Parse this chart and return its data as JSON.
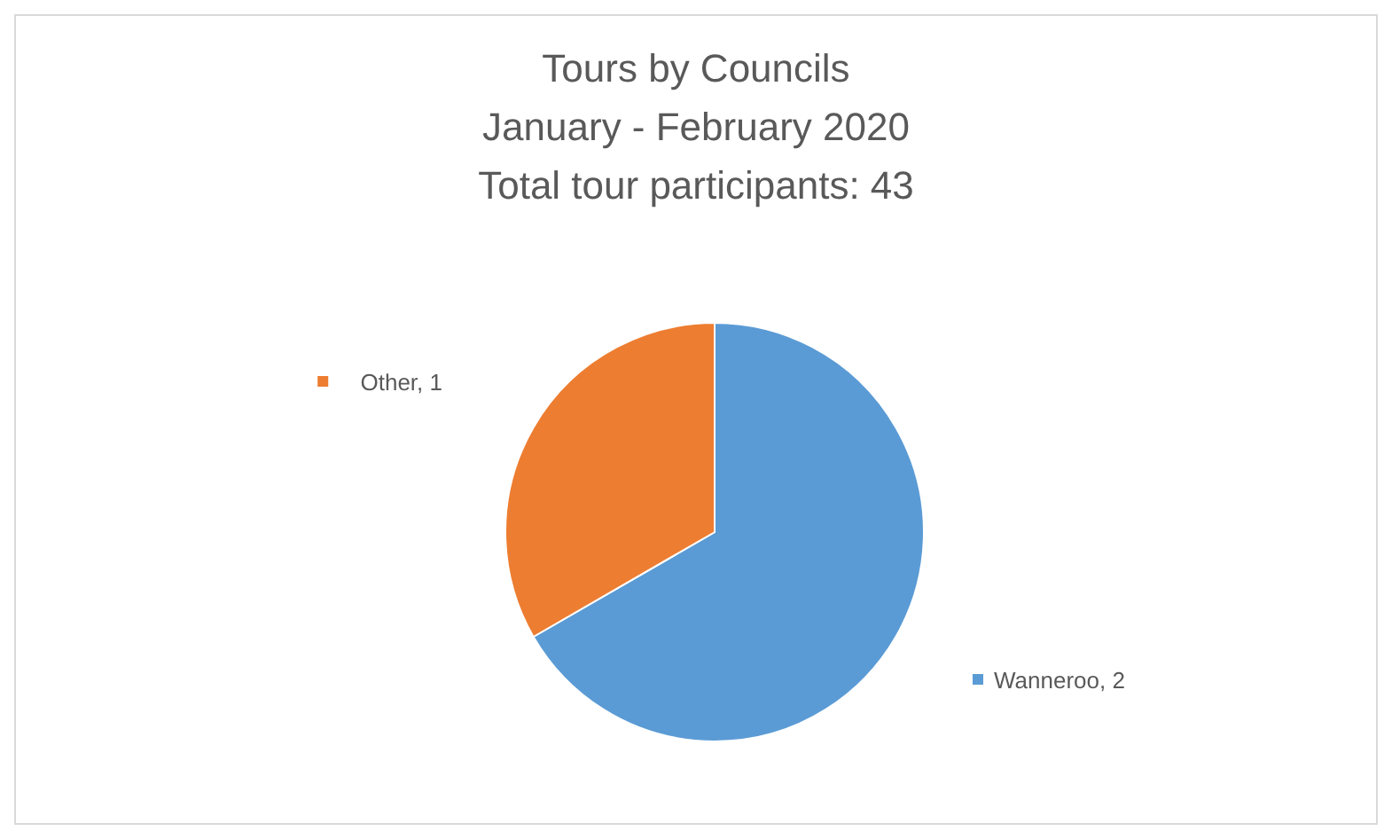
{
  "chart_data": {
    "type": "pie",
    "title": "Tours by Councils",
    "subtitle": "January - February 2020",
    "annotations": [
      "Total tour participants: 43"
    ],
    "categories": [
      "Wanneroo, 2",
      "Other, 1"
    ],
    "values": [
      2,
      1
    ],
    "colors": [
      "#5b9bd5",
      "#ed7d31"
    ],
    "legend": "right"
  }
}
